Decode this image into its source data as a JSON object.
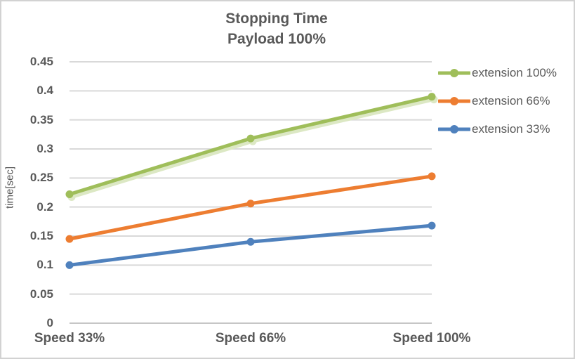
{
  "chart": {
    "title_line1": "Stopping Time",
    "title_line2": "Payload 100%",
    "y_axis_title": "time[sec]"
  },
  "chart_data": {
    "type": "line",
    "title": "Stopping Time Payload 100%",
    "title_lines": [
      "Stopping Time",
      "Payload 100%"
    ],
    "xlabel": "",
    "ylabel": "time[sec]",
    "categories": [
      "Speed 33%",
      "Speed 66%",
      "Speed 100%"
    ],
    "series": [
      {
        "name": "extension 100%",
        "color": "#9FBE5A",
        "shadow_color": "#DCE8C4",
        "values": [
          0.222,
          0.318,
          0.39
        ]
      },
      {
        "name": "extension 66%",
        "color": "#ED7D31",
        "values": [
          0.145,
          0.206,
          0.253
        ]
      },
      {
        "name": "extension 33%",
        "color": "#4F81BD",
        "values": [
          0.1,
          0.14,
          0.168
        ]
      }
    ],
    "ylim": [
      0,
      0.45
    ],
    "ytick_step": 0.05,
    "ytick_labels": [
      "0",
      "0.05",
      "0.1",
      "0.15",
      "0.2",
      "0.25",
      "0.3",
      "0.35",
      "0.4",
      "0.45"
    ],
    "grid": true,
    "legend_position": "right",
    "marker": "circle",
    "colors": {
      "text": "#595959",
      "gridline": "#D9D9D9",
      "zero_line": "#C6C6C6",
      "background": "#FFFFFF",
      "border": "#D2D2D2"
    }
  }
}
